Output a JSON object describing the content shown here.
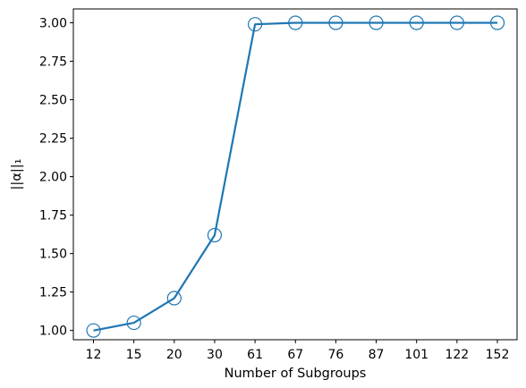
{
  "chart_data": {
    "type": "line",
    "title": "",
    "xlabel": "Number of Subgroups",
    "ylabel": "||α||₁",
    "categories": [
      "12",
      "15",
      "20",
      "30",
      "61",
      "67",
      "76",
      "87",
      "101",
      "122",
      "152"
    ],
    "series": [
      {
        "values": [
          1.0,
          1.05,
          1.21,
          1.62,
          2.99,
          3.0,
          3.0,
          3.0,
          3.0,
          3.0,
          3.0
        ],
        "color": "#1f77b4",
        "marker": "open-circle"
      }
    ],
    "ylim": [
      0.94,
      3.09
    ],
    "yticks": [
      1.0,
      1.25,
      1.5,
      1.75,
      2.0,
      2.25,
      2.5,
      2.75,
      3.0
    ],
    "ytick_labels": [
      "1.00",
      "1.25",
      "1.50",
      "1.75",
      "2.00",
      "2.25",
      "2.50",
      "2.75",
      "3.00"
    ],
    "grid": false,
    "legend": "none"
  }
}
